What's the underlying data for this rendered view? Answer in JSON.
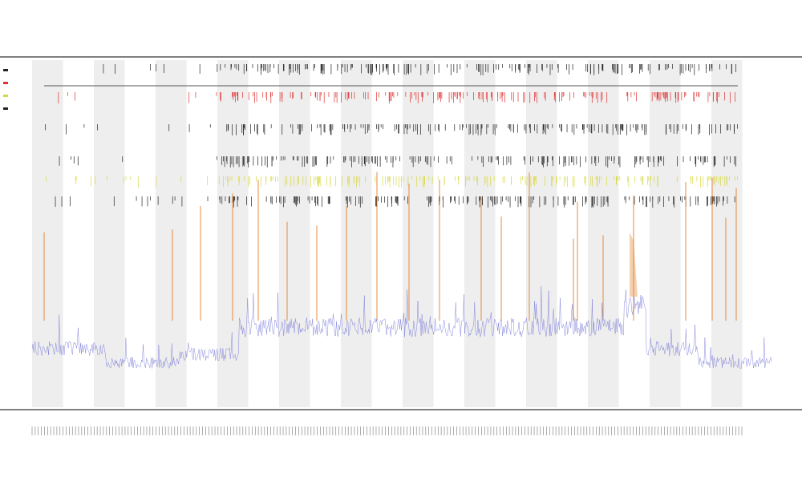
{
  "chart_data": {
    "type": "line",
    "title": "",
    "subtitle_lines": [],
    "xlabel": "",
    "ylabel": "",
    "n_points": 900,
    "band_count": 23,
    "grid": false,
    "legend_placement": "top-left",
    "colors": {
      "background_band": "#eeeeee",
      "line_primary": "#6b6bd6",
      "line_secondary": "#e07a1f",
      "tick_black": "#222222",
      "tick_red": "#e03030",
      "tick_yellow": "#d8d840",
      "frame": "#333333"
    },
    "series": [
      {
        "name": "",
        "color": "#6b6bd6",
        "shape": [
          {
            "from": 0,
            "to": 0.1,
            "level": 0.15
          },
          {
            "from": 0.1,
            "to": 0.2,
            "level": 0.02
          },
          {
            "from": 0.2,
            "to": 0.28,
            "level": 0.1
          },
          {
            "from": 0.28,
            "to": 0.8,
            "level": 0.35
          },
          {
            "from": 0.8,
            "to": 0.83,
            "level": 0.55
          },
          {
            "from": 0.83,
            "to": 0.9,
            "level": 0.15
          },
          {
            "from": 0.9,
            "to": 1.0,
            "level": 0.02
          }
        ]
      },
      {
        "name": "",
        "color": "#e07a1f",
        "spikes": 22
      }
    ],
    "tick_rows": [
      {
        "name": "",
        "color": "#222222"
      },
      {
        "name": "",
        "color": "#e03030"
      },
      {
        "name": "",
        "color": "#222222"
      },
      {
        "name": "",
        "color": "#222222"
      },
      {
        "name": "",
        "color": "#d8d840"
      },
      {
        "name": "",
        "color": "#222222"
      }
    ]
  }
}
